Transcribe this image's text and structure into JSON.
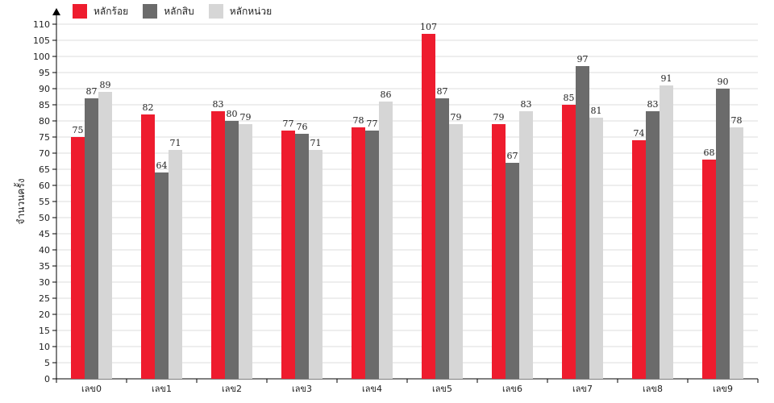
{
  "chart_data": {
    "type": "bar",
    "ylabel": "จำนวนครั้ง",
    "xlabel": "",
    "ylim": [
      0,
      110
    ],
    "y_ticks": [
      0,
      5,
      10,
      15,
      20,
      25,
      30,
      35,
      40,
      45,
      50,
      55,
      60,
      65,
      70,
      75,
      80,
      85,
      90,
      95,
      100,
      105,
      110
    ],
    "grid": true,
    "legend_position": "top-left",
    "categories": [
      "เลข0",
      "เลข1",
      "เลข2",
      "เลข3",
      "เลข4",
      "เลข5",
      "เลข6",
      "เลข7",
      "เลข8",
      "เลข9"
    ],
    "series": [
      {
        "name": "หลักร้อย",
        "color": "#ee1c2e",
        "values": [
          75,
          82,
          83,
          77,
          78,
          107,
          79,
          85,
          74,
          68
        ]
      },
      {
        "name": "หลักสิบ",
        "color": "#6b6b6b",
        "values": [
          87,
          64,
          80,
          76,
          77,
          87,
          67,
          97,
          83,
          90
        ]
      },
      {
        "name": "หลักหน่วย",
        "color": "#d6d6d6",
        "values": [
          89,
          71,
          79,
          71,
          86,
          79,
          83,
          81,
          91,
          78
        ]
      }
    ]
  }
}
